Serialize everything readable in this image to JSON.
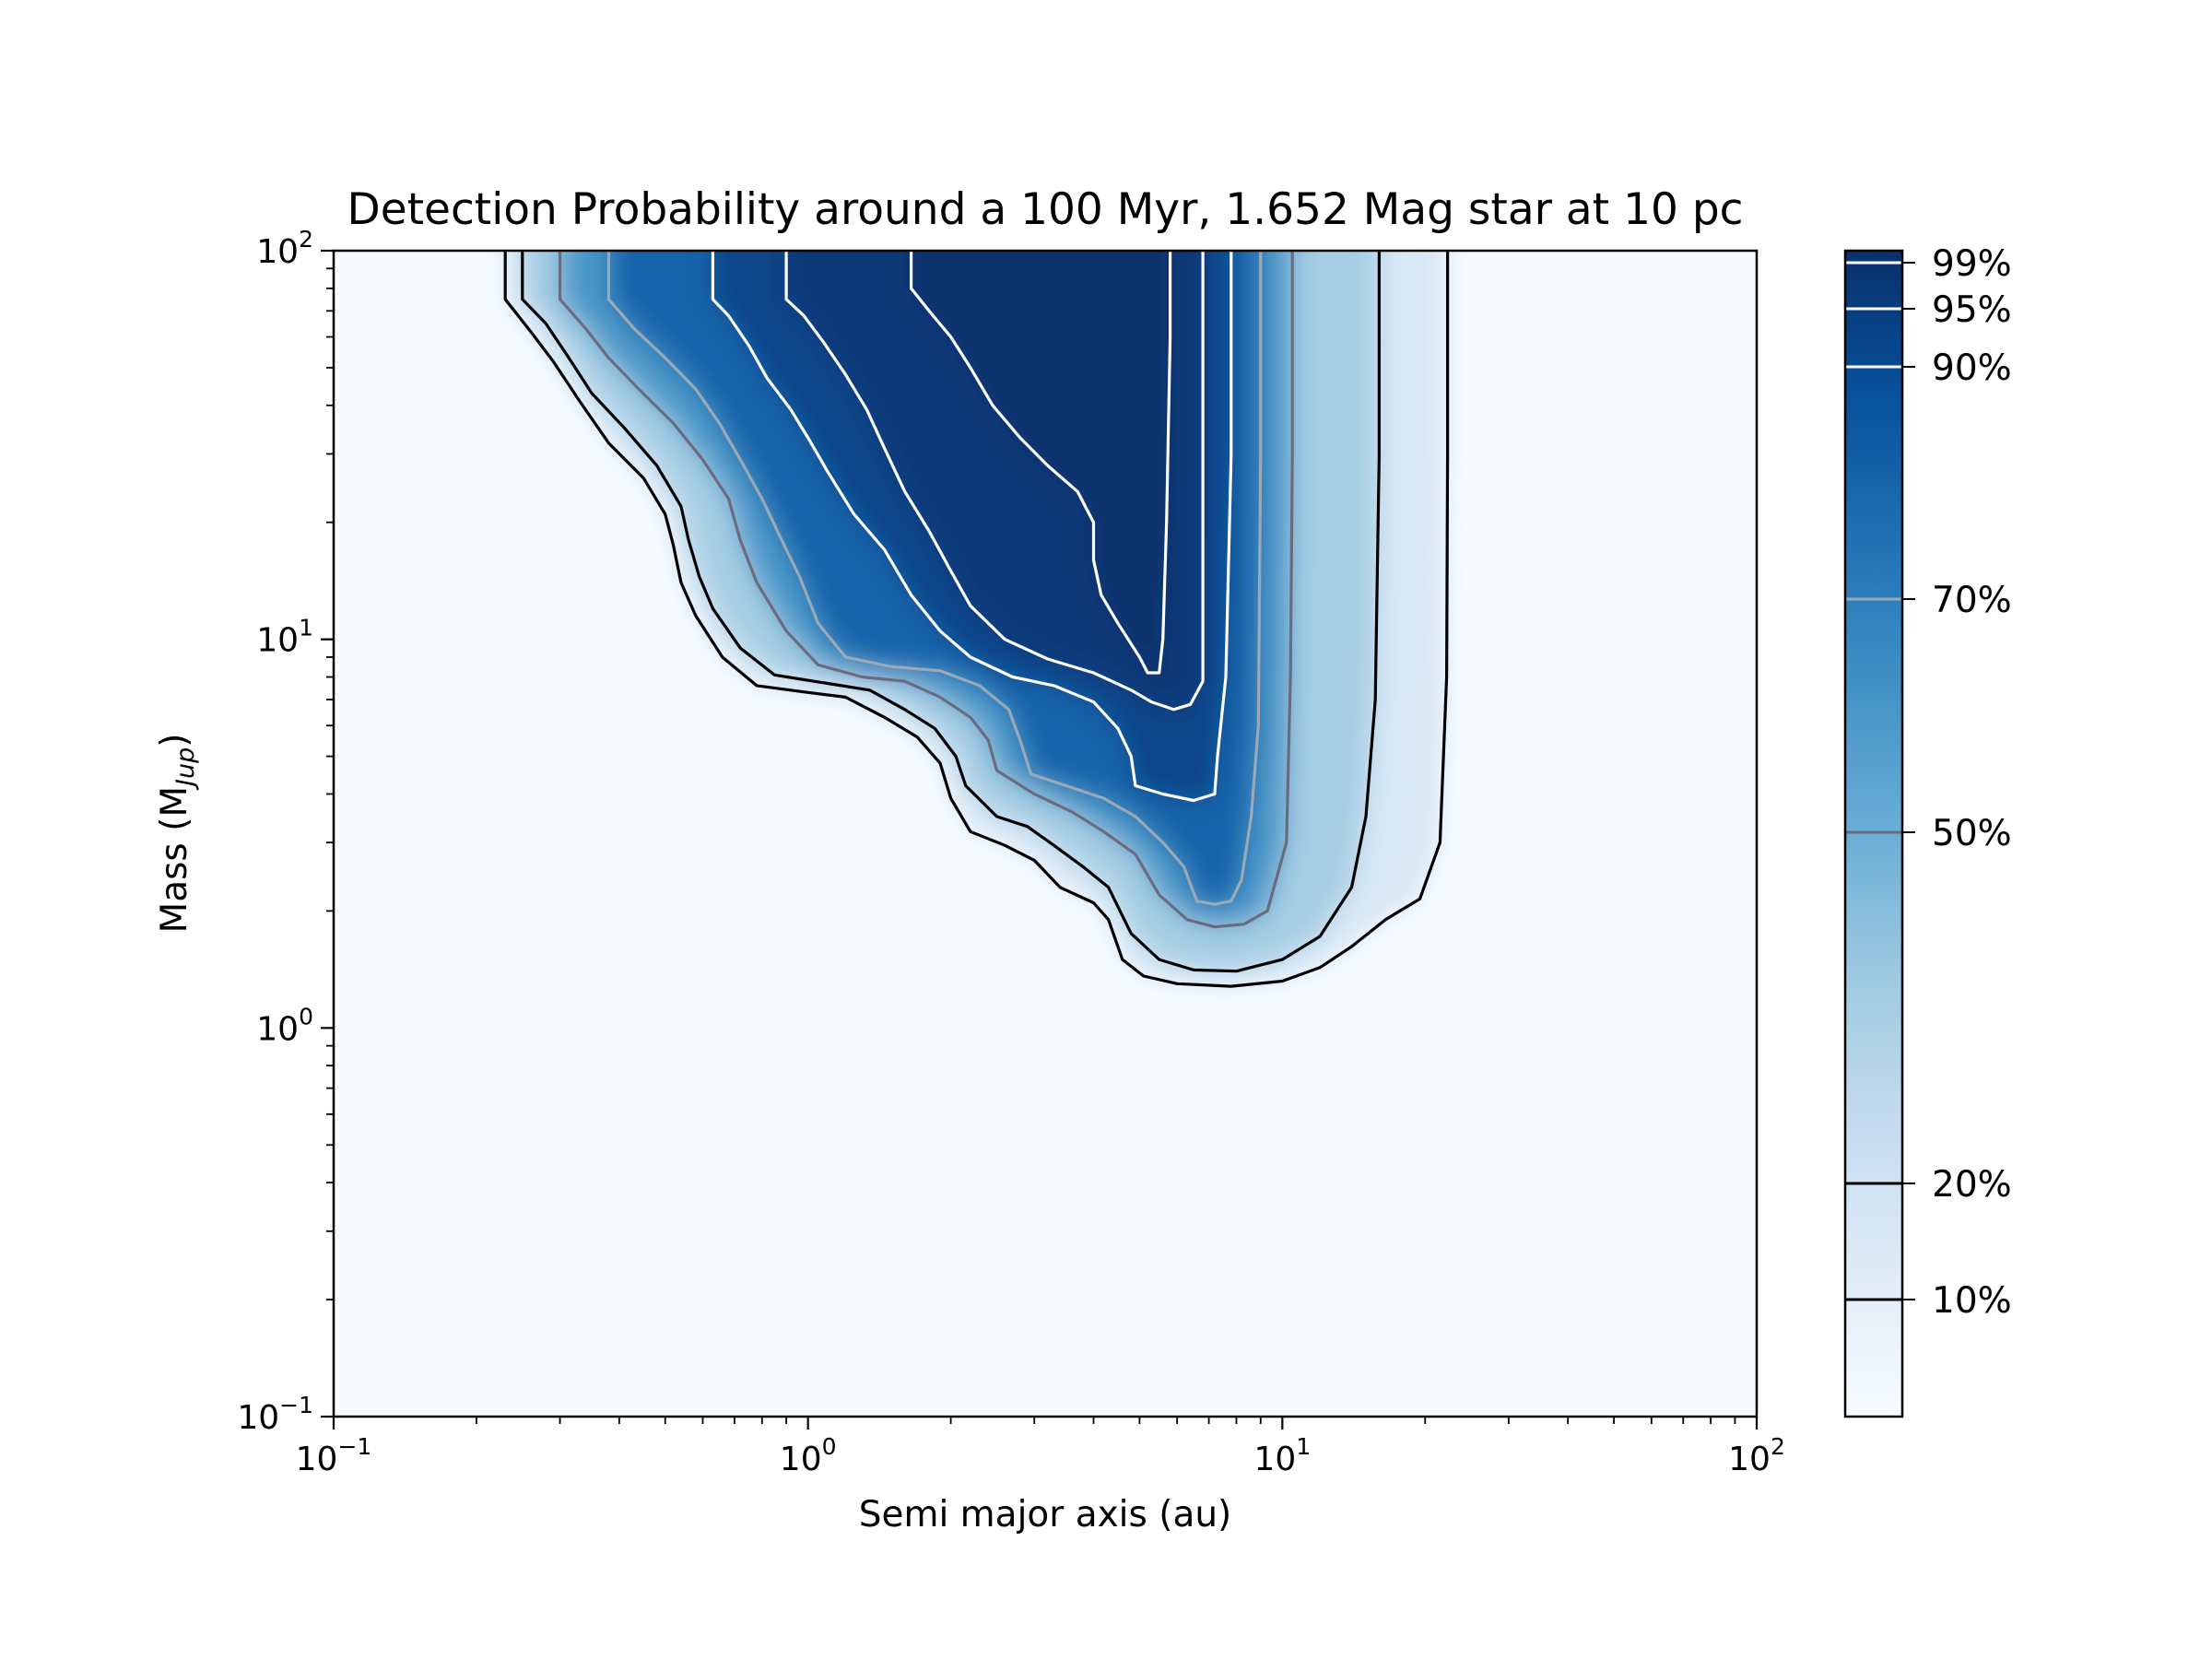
{
  "chart_data": {
    "type": "heatmap",
    "title": "Detection Probability around a 100 Myr, 1.652 Mag star at 10 pc",
    "xlabel": "Semi major axis (au)",
    "ylabel_main": "Mass (M",
    "ylabel_sub": "Jup",
    "ylabel_close": ")",
    "x_scale": "log",
    "y_scale": "log",
    "xlim": [
      0.1,
      100
    ],
    "ylim": [
      0.1,
      100
    ],
    "x_ticks": [
      {
        "base": "10",
        "exp": "−1",
        "value": 0.1
      },
      {
        "base": "10",
        "exp": "0",
        "value": 1
      },
      {
        "base": "10",
        "exp": "1",
        "value": 10
      },
      {
        "base": "10",
        "exp": "2",
        "value": 100
      }
    ],
    "y_ticks": [
      {
        "base": "10",
        "exp": "−1",
        "value": 0.1
      },
      {
        "base": "10",
        "exp": "0",
        "value": 1
      },
      {
        "base": "10",
        "exp": "1",
        "value": 10
      },
      {
        "base": "10",
        "exp": "2",
        "value": 100
      }
    ],
    "colormap": "Blues",
    "colorbar": {
      "range": [
        0,
        1
      ],
      "levels": [
        {
          "label": "10%",
          "value": 0.1,
          "line_color": "#000000"
        },
        {
          "label": "20%",
          "value": 0.2,
          "line_color": "#000000"
        },
        {
          "label": "50%",
          "value": 0.5,
          "line_color": "#6b6b80"
        },
        {
          "label": "70%",
          "value": 0.7,
          "line_color": "#9aa9b8"
        },
        {
          "label": "90%",
          "value": 0.9,
          "line_color": "#ffffff"
        },
        {
          "label": "95%",
          "value": 0.95,
          "line_color": "#ffffff"
        },
        {
          "label": "99%",
          "value": 0.99,
          "line_color": "#ffffff"
        }
      ]
    },
    "contours": [
      {
        "level": "10%",
        "color": "#000000",
        "points": [
          [
            0.23,
            100
          ],
          [
            0.23,
            75
          ],
          [
            0.26,
            62
          ],
          [
            0.29,
            52
          ],
          [
            0.33,
            41
          ],
          [
            0.38,
            32
          ],
          [
            0.45,
            26
          ],
          [
            0.5,
            21
          ],
          [
            0.52,
            17.5
          ],
          [
            0.54,
            14
          ],
          [
            0.58,
            11.5
          ],
          [
            0.66,
            9
          ],
          [
            0.78,
            7.6
          ],
          [
            1.0,
            7.3
          ],
          [
            1.2,
            7.1
          ],
          [
            1.45,
            6.3
          ],
          [
            1.7,
            5.6
          ],
          [
            1.9,
            4.8
          ],
          [
            2.0,
            3.9
          ],
          [
            2.2,
            3.2
          ],
          [
            2.6,
            2.95
          ],
          [
            3.0,
            2.7
          ],
          [
            3.4,
            2.3
          ],
          [
            4.0,
            2.1
          ],
          [
            4.3,
            1.9
          ],
          [
            4.6,
            1.5
          ],
          [
            5.1,
            1.36
          ],
          [
            6.0,
            1.3
          ],
          [
            7.8,
            1.28
          ],
          [
            10.0,
            1.32
          ],
          [
            12.0,
            1.43
          ],
          [
            14.0,
            1.62
          ],
          [
            16.5,
            1.9
          ],
          [
            19.5,
            2.15
          ],
          [
            21.5,
            3.0
          ],
          [
            22.2,
            8
          ],
          [
            22.3,
            30
          ],
          [
            22.3,
            100
          ]
        ]
      },
      {
        "level": "20%",
        "color": "#000000",
        "points": [
          [
            0.25,
            100
          ],
          [
            0.25,
            75
          ],
          [
            0.28,
            65
          ],
          [
            0.31,
            54
          ],
          [
            0.35,
            43
          ],
          [
            0.41,
            35
          ],
          [
            0.48,
            28
          ],
          [
            0.54,
            22
          ],
          [
            0.56,
            18
          ],
          [
            0.59,
            14.5
          ],
          [
            0.63,
            12
          ],
          [
            0.72,
            9.5
          ],
          [
            0.85,
            8.1
          ],
          [
            1.1,
            7.7
          ],
          [
            1.35,
            7.4
          ],
          [
            1.6,
            6.6
          ],
          [
            1.85,
            5.9
          ],
          [
            2.05,
            5.0
          ],
          [
            2.15,
            4.2
          ],
          [
            2.5,
            3.5
          ],
          [
            2.9,
            3.3
          ],
          [
            3.3,
            2.95
          ],
          [
            3.8,
            2.6
          ],
          [
            4.3,
            2.3
          ],
          [
            4.8,
            1.75
          ],
          [
            5.5,
            1.5
          ],
          [
            6.5,
            1.41
          ],
          [
            8.0,
            1.4
          ],
          [
            10.0,
            1.5
          ],
          [
            12.0,
            1.72
          ],
          [
            14.0,
            2.3
          ],
          [
            15.0,
            3.5
          ],
          [
            15.7,
            7
          ],
          [
            16.0,
            30
          ],
          [
            16.0,
            100
          ]
        ]
      },
      {
        "level": "50%",
        "color": "#6b6b80",
        "points": [
          [
            0.3,
            100
          ],
          [
            0.3,
            75
          ],
          [
            0.34,
            63
          ],
          [
            0.38,
            53
          ],
          [
            0.44,
            44
          ],
          [
            0.52,
            36
          ],
          [
            0.6,
            29
          ],
          [
            0.68,
            23
          ],
          [
            0.72,
            18
          ],
          [
            0.78,
            14
          ],
          [
            0.9,
            10.5
          ],
          [
            1.05,
            8.6
          ],
          [
            1.3,
            8.0
          ],
          [
            1.6,
            7.8
          ],
          [
            1.9,
            7.1
          ],
          [
            2.2,
            6.3
          ],
          [
            2.4,
            5.5
          ],
          [
            2.5,
            4.6
          ],
          [
            3.0,
            4.0
          ],
          [
            3.6,
            3.6
          ],
          [
            4.2,
            3.2
          ],
          [
            4.9,
            2.8
          ],
          [
            5.5,
            2.2
          ],
          [
            6.3,
            1.9
          ],
          [
            7.2,
            1.82
          ],
          [
            8.3,
            1.85
          ],
          [
            9.3,
            2.0
          ],
          [
            10.2,
            3.0
          ],
          [
            10.4,
            8
          ],
          [
            10.5,
            30
          ],
          [
            10.5,
            100
          ]
        ]
      },
      {
        "level": "70%",
        "color": "#9aa9b8",
        "points": [
          [
            0.38,
            100
          ],
          [
            0.38,
            75
          ],
          [
            0.43,
            63
          ],
          [
            0.5,
            53
          ],
          [
            0.58,
            44
          ],
          [
            0.65,
            36
          ],
          [
            0.72,
            29
          ],
          [
            0.8,
            23
          ],
          [
            0.88,
            18
          ],
          [
            0.96,
            14.5
          ],
          [
            1.05,
            11
          ],
          [
            1.2,
            9.0
          ],
          [
            1.5,
            8.5
          ],
          [
            1.9,
            8.3
          ],
          [
            2.3,
            7.6
          ],
          [
            2.65,
            6.6
          ],
          [
            2.8,
            5.5
          ],
          [
            2.95,
            4.5
          ],
          [
            3.5,
            4.2
          ],
          [
            4.2,
            3.9
          ],
          [
            4.9,
            3.5
          ],
          [
            5.6,
            3.0
          ],
          [
            6.2,
            2.6
          ],
          [
            6.6,
            2.12
          ],
          [
            7.2,
            2.08
          ],
          [
            7.8,
            2.12
          ],
          [
            8.2,
            2.4
          ],
          [
            8.6,
            3.5
          ],
          [
            8.9,
            6
          ],
          [
            9.0,
            30
          ],
          [
            9.0,
            100
          ]
        ]
      },
      {
        "level": "90%",
        "color": "#ffffff",
        "points": [
          [
            0.63,
            100
          ],
          [
            0.63,
            75
          ],
          [
            0.68,
            68
          ],
          [
            0.75,
            57
          ],
          [
            0.82,
            47
          ],
          [
            0.92,
            39
          ],
          [
            1.0,
            33
          ],
          [
            1.1,
            27
          ],
          [
            1.25,
            21
          ],
          [
            1.45,
            17
          ],
          [
            1.65,
            13
          ],
          [
            1.9,
            10.5
          ],
          [
            2.2,
            9.0
          ],
          [
            2.7,
            8.0
          ],
          [
            3.3,
            7.6
          ],
          [
            4.0,
            6.9
          ],
          [
            4.5,
            5.9
          ],
          [
            4.8,
            5.0
          ],
          [
            4.9,
            4.2
          ],
          [
            5.6,
            4.0
          ],
          [
            6.5,
            3.85
          ],
          [
            7.2,
            4.0
          ],
          [
            7.3,
            5
          ],
          [
            7.6,
            8
          ],
          [
            7.8,
            30
          ],
          [
            7.8,
            100
          ]
        ]
      },
      {
        "level": "95%",
        "color": "#ffffff",
        "points": [
          [
            0.9,
            100
          ],
          [
            0.9,
            75
          ],
          [
            0.98,
            68
          ],
          [
            1.08,
            58
          ],
          [
            1.2,
            48
          ],
          [
            1.33,
            39
          ],
          [
            1.45,
            31
          ],
          [
            1.6,
            24
          ],
          [
            1.8,
            19
          ],
          [
            2.0,
            15
          ],
          [
            2.2,
            12.2
          ],
          [
            2.6,
            10
          ],
          [
            3.2,
            8.9
          ],
          [
            4.0,
            8.2
          ],
          [
            4.8,
            7.4
          ],
          [
            5.3,
            6.9
          ],
          [
            5.9,
            6.6
          ],
          [
            6.4,
            6.8
          ],
          [
            6.8,
            7.8
          ],
          [
            6.8,
            30
          ],
          [
            6.8,
            100
          ]
        ]
      },
      {
        "level": "99%",
        "color": "#ffffff",
        "points": [
          [
            1.65,
            100
          ],
          [
            1.65,
            80
          ],
          [
            1.8,
            70
          ],
          [
            2.0,
            60
          ],
          [
            2.2,
            50
          ],
          [
            2.45,
            40
          ],
          [
            2.8,
            33
          ],
          [
            3.2,
            28
          ],
          [
            3.7,
            24
          ],
          [
            4.0,
            20
          ],
          [
            4.0,
            16
          ],
          [
            4.15,
            13
          ],
          [
            4.5,
            11
          ],
          [
            5.0,
            9.0
          ],
          [
            5.2,
            8.2
          ],
          [
            5.5,
            8.2
          ],
          [
            5.6,
            10
          ],
          [
            5.7,
            20
          ],
          [
            5.8,
            60
          ],
          [
            5.8,
            100
          ]
        ]
      }
    ]
  }
}
